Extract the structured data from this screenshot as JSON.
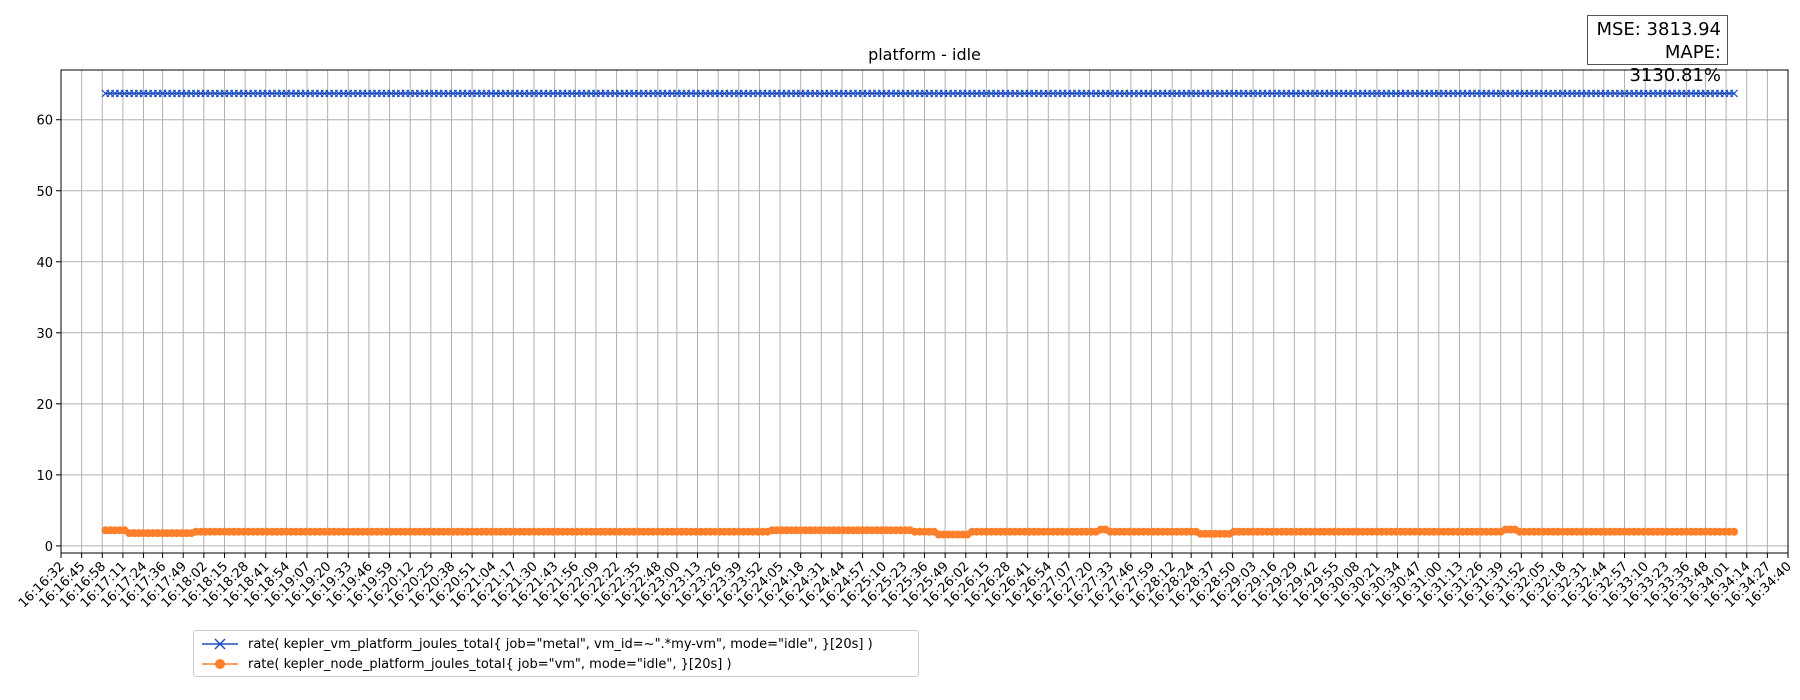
{
  "chart_data": {
    "type": "line",
    "title": "platform - idle",
    "xlabel": "",
    "ylabel": "",
    "ylim": [
      -1,
      67
    ],
    "yticks": [
      0,
      10,
      20,
      30,
      40,
      50,
      60
    ],
    "grid": true,
    "legend_placement": "below plot, left",
    "x_tick_labels": [
      "16:16:32",
      "16:16:45",
      "16:16:58",
      "16:17:11",
      "16:17:24",
      "16:17:36",
      "16:17:49",
      "16:18:02",
      "16:18:15",
      "16:18:28",
      "16:18:41",
      "16:18:54",
      "16:19:07",
      "16:19:20",
      "16:19:33",
      "16:19:46",
      "16:19:59",
      "16:20:12",
      "16:20:25",
      "16:20:38",
      "16:20:51",
      "16:21:04",
      "16:21:17",
      "16:21:30",
      "16:21:43",
      "16:21:56",
      "16:22:09",
      "16:22:22",
      "16:22:35",
      "16:22:48",
      "16:23:00",
      "16:23:13",
      "16:23:26",
      "16:23:39",
      "16:23:52",
      "16:24:05",
      "16:24:18",
      "16:24:31",
      "16:24:44",
      "16:24:57",
      "16:25:10",
      "16:25:23",
      "16:25:36",
      "16:25:49",
      "16:26:02",
      "16:26:15",
      "16:26:28",
      "16:26:41",
      "16:26:54",
      "16:27:07",
      "16:27:20",
      "16:27:33",
      "16:27:46",
      "16:27:59",
      "16:28:12",
      "16:28:24",
      "16:28:37",
      "16:28:50",
      "16:29:03",
      "16:29:16",
      "16:29:29",
      "16:29:42",
      "16:29:55",
      "16:30:08",
      "16:30:21",
      "16:30:34",
      "16:30:47",
      "16:31:00",
      "16:31:13",
      "16:31:26",
      "16:31:39",
      "16:31:52",
      "16:32:05",
      "16:32:18",
      "16:32:31",
      "16:32:44",
      "16:32:57",
      "16:33:10",
      "16:33:23",
      "16:33:36",
      "16:33:48",
      "16:34:01",
      "16:34:14",
      "16:34:27",
      "16:34:40"
    ],
    "x_range": [
      "16:16:32",
      "16:34:40"
    ],
    "series": [
      {
        "name": "rate( kepler_vm_platform_joules_total{ job=\"metal\", vm_id=~\".*my-vm\", mode=\"idle\", }[20s] )",
        "color": "#1f4fbf",
        "marker": "x",
        "x_start": "16:17:00",
        "x_end": "16:34:08",
        "step_seconds": 3,
        "segments": [
          {
            "from": "16:17:00",
            "to": "16:34:08",
            "value": 63.7
          }
        ]
      },
      {
        "name": "rate( kepler_node_platform_joules_total{ job=\"vm\", mode=\"idle\", }[20s] )",
        "color": "#ff7f2a",
        "marker": "o",
        "x_start": "16:17:00",
        "x_end": "16:34:08",
        "step_seconds": 3,
        "segments": [
          {
            "from": "16:17:00",
            "to": "16:17:15",
            "value": 2.2
          },
          {
            "from": "16:17:15",
            "to": "16:17:55",
            "value": 1.8
          },
          {
            "from": "16:17:55",
            "to": "16:24:00",
            "value": 2.0
          },
          {
            "from": "16:24:00",
            "to": "16:25:30",
            "value": 2.2
          },
          {
            "from": "16:25:30",
            "to": "16:25:45",
            "value": 2.0
          },
          {
            "from": "16:25:45",
            "to": "16:26:05",
            "value": 1.6
          },
          {
            "from": "16:26:05",
            "to": "16:27:25",
            "value": 2.0
          },
          {
            "from": "16:27:25",
            "to": "16:27:33",
            "value": 2.3
          },
          {
            "from": "16:27:33",
            "to": "16:28:30",
            "value": 2.0
          },
          {
            "from": "16:28:30",
            "to": "16:28:50",
            "value": 1.7
          },
          {
            "from": "16:28:50",
            "to": "16:31:40",
            "value": 2.0
          },
          {
            "from": "16:31:40",
            "to": "16:31:50",
            "value": 2.3
          },
          {
            "from": "16:31:50",
            "to": "16:34:08",
            "value": 2.0
          }
        ]
      }
    ]
  },
  "metrics": {
    "mse": "MSE: 3813.94",
    "mape": "MAPE: 3130.81%"
  }
}
